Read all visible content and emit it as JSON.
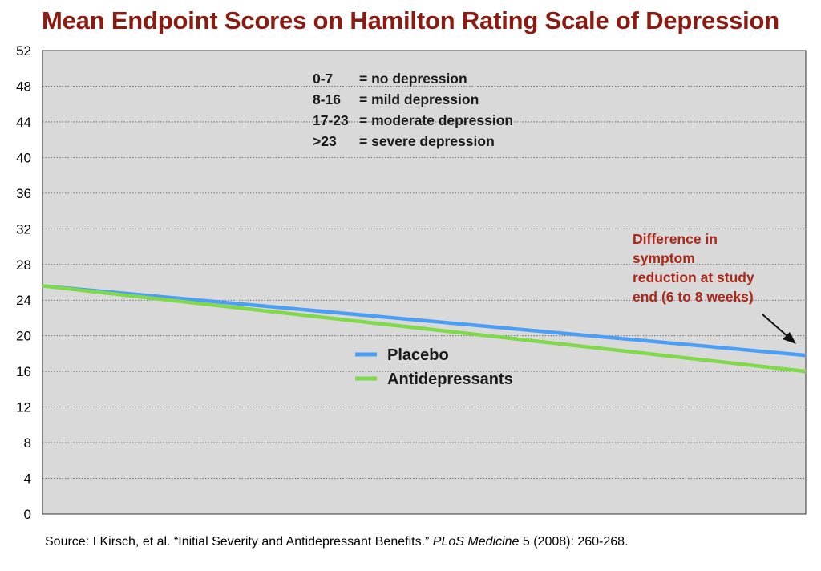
{
  "chart_data": {
    "type": "line",
    "title": "Mean Endpoint Scores on Hamilton Rating Scale of Depression",
    "ylim": [
      0,
      52
    ],
    "yticks": [
      "0",
      "4",
      "8",
      "12",
      "16",
      "20",
      "24",
      "28",
      "32",
      "36",
      "40",
      "44",
      "48",
      "52"
    ],
    "grid": true,
    "x": [
      0,
      1
    ],
    "series": [
      {
        "name": "Placebo",
        "color": "#4a9ff5",
        "values": [
          25.6,
          17.8
        ]
      },
      {
        "name": "Antidepressants",
        "color": "#7fd94a",
        "values": [
          25.6,
          16.0
        ]
      }
    ],
    "legend_position": "center",
    "severity_key": [
      {
        "range": "0-7",
        "label": "= no depression"
      },
      {
        "range": "8-16",
        "label": "= mild depression"
      },
      {
        "range": "17-23",
        "label": "= moderate depression"
      },
      {
        "range": ">23",
        "label": "= severe depression"
      }
    ],
    "annotation": [
      "Difference in",
      "symptom",
      "reduction at study",
      "end (6 to 8 weeks)"
    ]
  },
  "source": {
    "prefix": "Source: I Kirsch, et al. “Initial Severity and Antidepressant Benefits.” ",
    "journal": "PLoS Medicine",
    "suffix": " 5 (2008): 260-268."
  },
  "colors": {
    "title": "#8b1a10",
    "plot_background": "#d9d9d9",
    "annotation": "#a8281a"
  }
}
